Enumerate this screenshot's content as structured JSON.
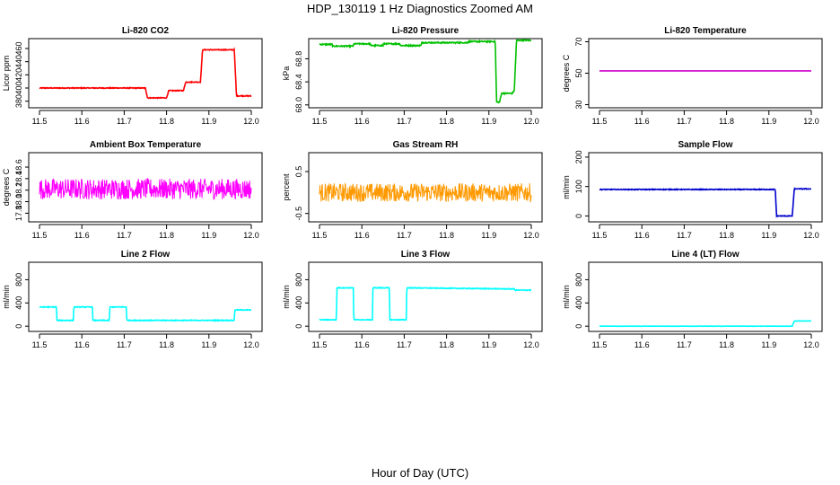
{
  "title": "HDP_130119  1 Hz Diagnostics Zoomed AM",
  "xlabel": "Hour of Day (UTC)",
  "chart_data": [
    {
      "type": "line",
      "title": "Li-820 CO2",
      "ylabel": "Licor ppm",
      "xlim": [
        11.5,
        12.0
      ],
      "ylim": [
        370,
        475
      ],
      "xticks": [
        "11.5",
        "11.6",
        "11.7",
        "11.8",
        "11.9",
        "12.0"
      ],
      "yticks": [
        "380",
        "400",
        "420",
        "440",
        "460"
      ],
      "color": "#ff0000",
      "noise": 0.6,
      "x": [
        11.5,
        11.75,
        11.755,
        11.8,
        11.805,
        11.84,
        11.845,
        11.88,
        11.885,
        11.96,
        11.965,
        12.0
      ],
      "y": [
        400,
        400,
        385,
        385,
        396,
        396,
        409,
        409,
        458,
        458,
        388,
        388
      ]
    },
    {
      "type": "line",
      "title": "Li-820 Pressure",
      "ylabel": "kPa",
      "xlim": [
        11.5,
        12.0
      ],
      "ylim": [
        67.95,
        69.15
      ],
      "xticks": [
        "11.5",
        "11.6",
        "11.7",
        "11.8",
        "11.9",
        "12.0"
      ],
      "yticks": [
        "68.0",
        "68.4",
        "68.8"
      ],
      "color": "#00c000",
      "noise": 0.01,
      "x": [
        11.5,
        11.53,
        11.531,
        11.58,
        11.581,
        11.62,
        11.621,
        11.65,
        11.651,
        11.69,
        11.691,
        11.74,
        11.741,
        11.85,
        11.851,
        11.915,
        11.918,
        11.925,
        11.93,
        11.955,
        11.96,
        11.965,
        12.0
      ],
      "y": [
        69.05,
        69.05,
        69.02,
        69.02,
        69.06,
        69.06,
        69.03,
        69.03,
        69.06,
        69.06,
        69.03,
        69.03,
        69.08,
        69.08,
        69.1,
        69.1,
        68.05,
        68.05,
        68.2,
        68.2,
        68.25,
        69.12,
        69.12
      ]
    },
    {
      "type": "line",
      "title": "Li-820 Temperature",
      "ylabel": "degrees C",
      "xlim": [
        11.5,
        12.0
      ],
      "ylim": [
        28,
        72
      ],
      "xticks": [
        "11.5",
        "11.6",
        "11.7",
        "11.8",
        "11.9",
        "12.0"
      ],
      "yticks": [
        "30",
        "50",
        "70"
      ],
      "color": "#cc00cc",
      "noise": 0,
      "x": [
        11.5,
        12.0
      ],
      "y": [
        51.5,
        51.5
      ]
    },
    {
      "type": "line",
      "title": "Ambient Box Temperature",
      "ylabel": "degrees C",
      "xlim": [
        11.5,
        12.0
      ],
      "ylim": [
        17.65,
        18.85
      ],
      "xticks": [
        "11.5",
        "11.6",
        "11.7",
        "11.8",
        "11.9",
        "12.0"
      ],
      "yticks": [
        "17.8",
        "18.0",
        "18.2",
        "18.4",
        "18.6"
      ],
      "color": "#ff00ff",
      "noise": 0.18,
      "x": [
        11.5,
        12.0
      ],
      "y": [
        18.22,
        18.22
      ]
    },
    {
      "type": "line",
      "title": "Gas Stream RH",
      "ylabel": "percent",
      "xlim": [
        11.5,
        12.0
      ],
      "ylim": [
        -0.7,
        0.95
      ],
      "xticks": [
        "11.5",
        "11.6",
        "11.7",
        "11.8",
        "11.9",
        "12.0"
      ],
      "yticks": [
        "-0.5",
        "0.5"
      ],
      "color": "#ff9900",
      "noise": 0.22,
      "x": [
        11.5,
        12.0
      ],
      "y": [
        0.0,
        0.0
      ]
    },
    {
      "type": "line",
      "title": "Sample Flow",
      "ylabel": "ml/min",
      "xlim": [
        11.5,
        12.0
      ],
      "ylim": [
        -20,
        215
      ],
      "xticks": [
        "11.5",
        "11.6",
        "11.7",
        "11.8",
        "11.9",
        "12.0"
      ],
      "yticks": [
        "0",
        "100",
        "200"
      ],
      "color": "#0000cc",
      "noise": 1.2,
      "x": [
        11.5,
        11.915,
        11.918,
        11.955,
        11.96,
        12.0
      ],
      "y": [
        90,
        90,
        0,
        0,
        92,
        92
      ]
    },
    {
      "type": "line",
      "title": "Line 2 Flow",
      "ylabel": "ml/min",
      "xlim": [
        11.5,
        12.0
      ],
      "ylim": [
        -90,
        1100
      ],
      "xticks": [
        "11.5",
        "11.6",
        "11.7",
        "11.8",
        "11.9",
        "12.0"
      ],
      "yticks": [
        "0",
        "400",
        "800"
      ],
      "color": "#00ffff",
      "noise": 6,
      "x": [
        11.5,
        11.54,
        11.541,
        11.58,
        11.581,
        11.625,
        11.626,
        11.665,
        11.666,
        11.705,
        11.706,
        11.96,
        11.961,
        12.0
      ],
      "y": [
        330,
        330,
        100,
        100,
        330,
        330,
        100,
        100,
        330,
        330,
        100,
        100,
        280,
        280
      ]
    },
    {
      "type": "line",
      "title": "Line 3 Flow",
      "ylabel": "ml/min",
      "xlim": [
        11.5,
        12.0
      ],
      "ylim": [
        -90,
        1100
      ],
      "xticks": [
        "11.5",
        "11.6",
        "11.7",
        "11.8",
        "11.9",
        "12.0"
      ],
      "yticks": [
        "0",
        "400",
        "800"
      ],
      "color": "#00ffff",
      "noise": 6,
      "x": [
        11.5,
        11.54,
        11.541,
        11.58,
        11.581,
        11.625,
        11.626,
        11.665,
        11.666,
        11.705,
        11.706,
        11.96,
        11.961,
        12.0
      ],
      "y": [
        110,
        110,
        660,
        660,
        110,
        110,
        660,
        660,
        110,
        110,
        660,
        640,
        620,
        620
      ]
    },
    {
      "type": "line",
      "title": "Line 4 (LT) Flow",
      "ylabel": "ml/min",
      "xlim": [
        11.5,
        12.0
      ],
      "ylim": [
        -90,
        1100
      ],
      "xticks": [
        "11.5",
        "11.6",
        "11.7",
        "11.8",
        "11.9",
        "12.0"
      ],
      "yticks": [
        "0",
        "400",
        "800"
      ],
      "color": "#00ffff",
      "noise": 2,
      "x": [
        11.5,
        11.955,
        11.96,
        12.0
      ],
      "y": [
        0,
        0,
        90,
        90
      ]
    }
  ]
}
